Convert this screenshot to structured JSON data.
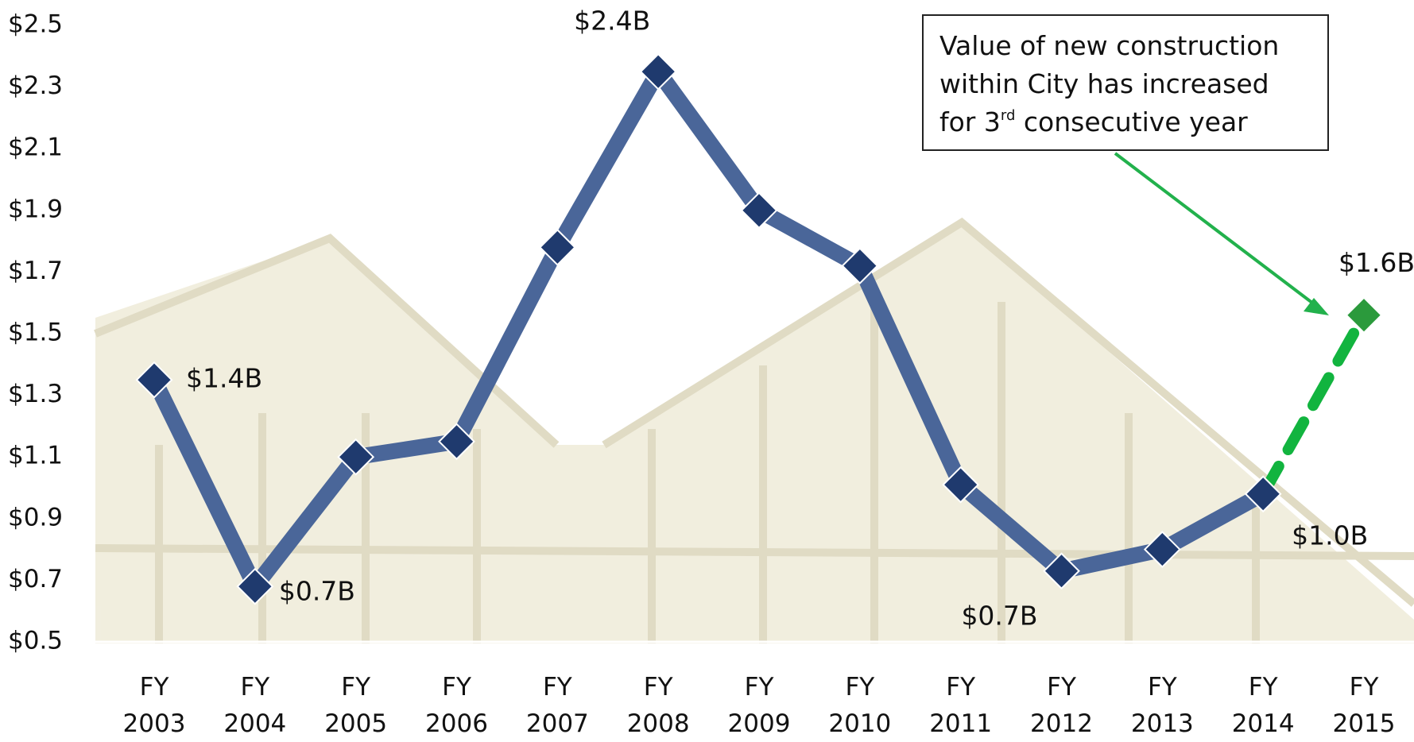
{
  "chart_data": {
    "type": "line",
    "categories": [
      "FY 2003",
      "FY 2004",
      "FY 2005",
      "FY 2006",
      "FY 2007",
      "FY 2008",
      "FY 2009",
      "FY 2010",
      "FY 2011",
      "FY 2012",
      "FY 2013",
      "FY 2014",
      "FY 2015"
    ],
    "values": [
      1.35,
      0.68,
      1.1,
      1.15,
      1.78,
      2.35,
      1.9,
      1.72,
      1.01,
      0.73,
      0.8,
      0.98,
      1.56
    ],
    "value_labels": [
      "$1.4B",
      "$0.7B",
      null,
      null,
      null,
      "$2.4B",
      null,
      null,
      null,
      "$0.7B",
      null,
      "$1.0B",
      "$1.6B"
    ],
    "color": "#4a6699",
    "marker_color": "#1f3a6e",
    "forecast_color": "#12b43f",
    "forecast_marker_color": "#2b9a3c",
    "ylim": [
      0.5,
      2.5
    ],
    "yticks": [
      {
        "value": 0.5,
        "label": "$0.5"
      },
      {
        "value": 0.7,
        "label": "$0.7"
      },
      {
        "value": 0.9,
        "label": "$0.9"
      },
      {
        "value": 1.1,
        "label": "$1.1"
      },
      {
        "value": 1.3,
        "label": "$1.3"
      },
      {
        "value": 1.5,
        "label": "$1.5"
      },
      {
        "value": 1.7,
        "label": "$1.7"
      },
      {
        "value": 1.9,
        "label": "$1.9"
      },
      {
        "value": 2.1,
        "label": "$2.1"
      },
      {
        "value": 2.3,
        "label": "$2.3"
      },
      {
        "value": 2.5,
        "label": "$2.5"
      }
    ],
    "grid": false,
    "annotation": {
      "lines": [
        "Value of new construction",
        "within City has increased",
        "for 3"
      ],
      "superscript": "rd",
      "tail": "consecutive year"
    }
  }
}
